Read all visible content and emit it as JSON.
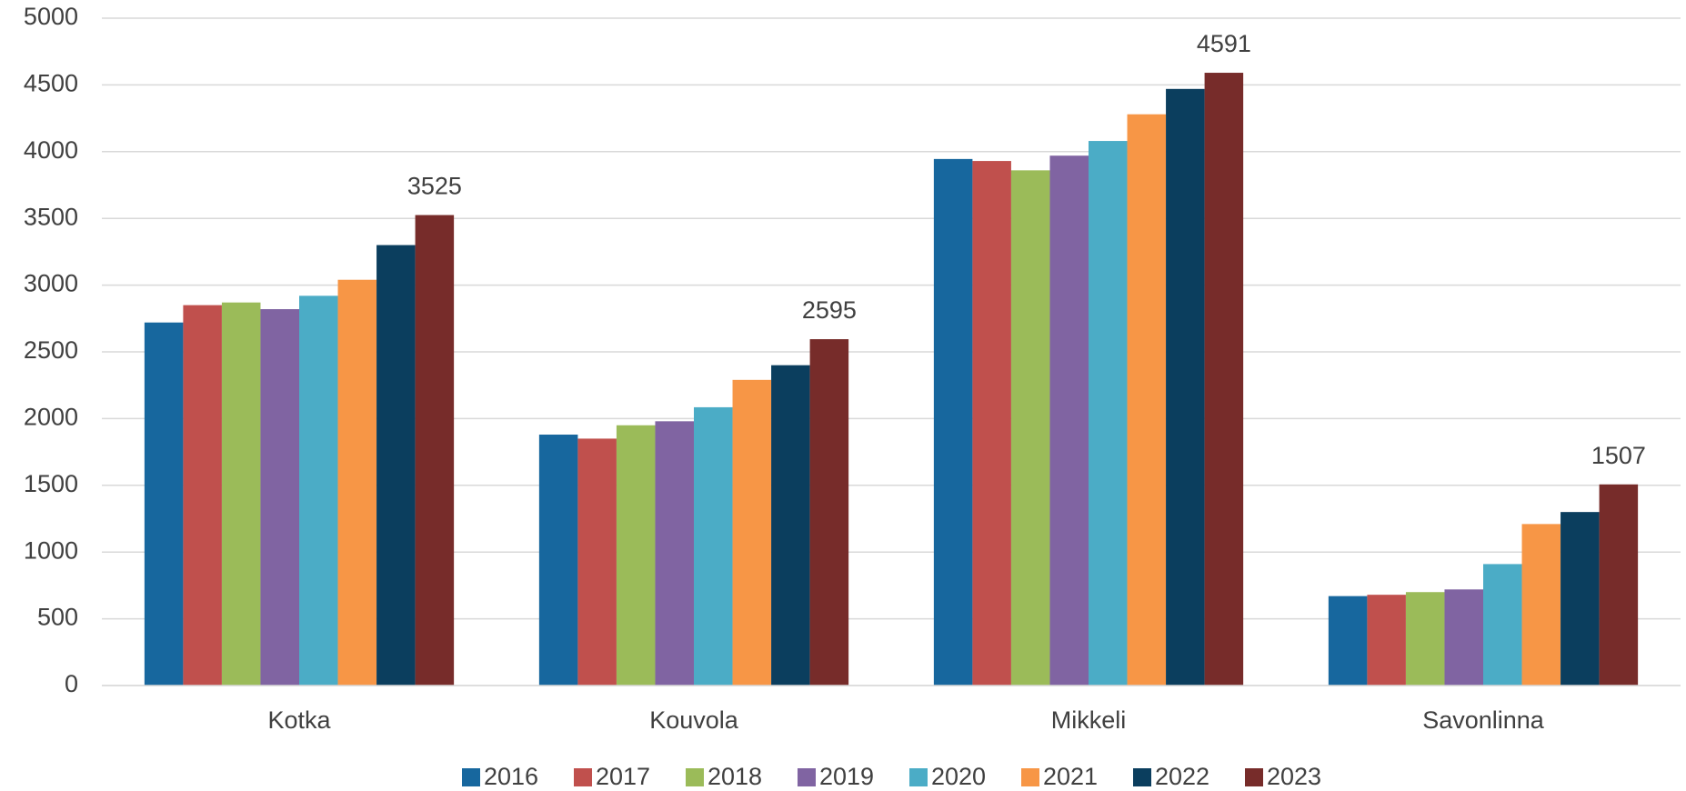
{
  "chart_data": {
    "type": "bar",
    "categories": [
      "Kotka",
      "Kouvola",
      "Mikkeli",
      "Savonlinna"
    ],
    "series": [
      {
        "name": "2016",
        "color": "#17679e",
        "values": [
          2720,
          1880,
          3945,
          670
        ]
      },
      {
        "name": "2017",
        "color": "#c0504d",
        "values": [
          2850,
          1850,
          3930,
          680
        ]
      },
      {
        "name": "2018",
        "color": "#9bbb59",
        "values": [
          2870,
          1950,
          3860,
          700
        ]
      },
      {
        "name": "2019",
        "color": "#8064a2",
        "values": [
          2820,
          1980,
          3970,
          720
        ]
      },
      {
        "name": "2020",
        "color": "#4bacc6",
        "values": [
          2920,
          2085,
          4080,
          910
        ]
      },
      {
        "name": "2021",
        "color": "#f79646",
        "values": [
          3040,
          2290,
          4280,
          1210
        ]
      },
      {
        "name": "2022",
        "color": "#0b3e5e",
        "values": [
          3300,
          2400,
          4470,
          1300
        ]
      },
      {
        "name": "2023",
        "color": "#772c2a",
        "values": [
          3525,
          2595,
          4591,
          1507
        ]
      }
    ],
    "data_labels": {
      "series": "2023"
    },
    "ylim": [
      0,
      5000
    ],
    "yticks": [
      0,
      500,
      1000,
      1500,
      2000,
      2500,
      3000,
      3500,
      4000,
      4500,
      5000
    ],
    "grid": true,
    "legend": "bottom"
  }
}
